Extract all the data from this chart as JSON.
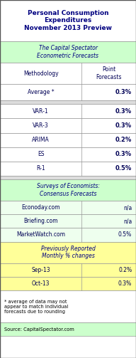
{
  "title": "Personal Consumption\nExpenditures\nNovember 2013 Preview",
  "section1_header": "The Capital Spectator\nEconometric Forecasts",
  "col1_header": "Methodology",
  "col2_header": "Point\nForecasts",
  "avg_label": "Average *",
  "avg_value": "0.3%",
  "model_rows": [
    [
      "VAR-1",
      "0.3%"
    ],
    [
      "VAR-3",
      "0.3%"
    ],
    [
      "ARIMA",
      "0.2%"
    ],
    [
      "ES",
      "0.3%"
    ],
    [
      "R-1",
      "0.5%"
    ]
  ],
  "section2_header": "Surveys of Economists:\nConsensus Forecasts",
  "survey_rows": [
    [
      "Econoday.com",
      "n/a"
    ],
    [
      "Briefing.com",
      "n/a"
    ],
    [
      "MarketWatch.com",
      "0.5%"
    ]
  ],
  "section3_header": "Previously Reported\nMonthly % changes",
  "prev_rows": [
    [
      "Sep-13",
      "0.2%"
    ],
    [
      "Oct-13",
      "0.3%"
    ]
  ],
  "footnote": "* average of data may not\nappear to match individual\nforecasts due to rounding",
  "source": "Source: CapitalSpectator.com",
  "color_title_bg": "#ffffff",
  "color_section1_bg": "#ccffcc",
  "color_white_bg": "#ffffff",
  "color_section2_bg": "#ccffcc",
  "color_survey_bg": "#eeffee",
  "color_section3_bg": "#ffff99",
  "color_prev_bg": "#ffff99",
  "color_footnote_bg": "#ffffff",
  "color_source_bg": "#ccffcc",
  "color_gap_bg": "#dddddd",
  "border_color": "#999999",
  "title_color": "#000080",
  "section_color": "#000080",
  "data_color": "#000055",
  "split": 0.6
}
